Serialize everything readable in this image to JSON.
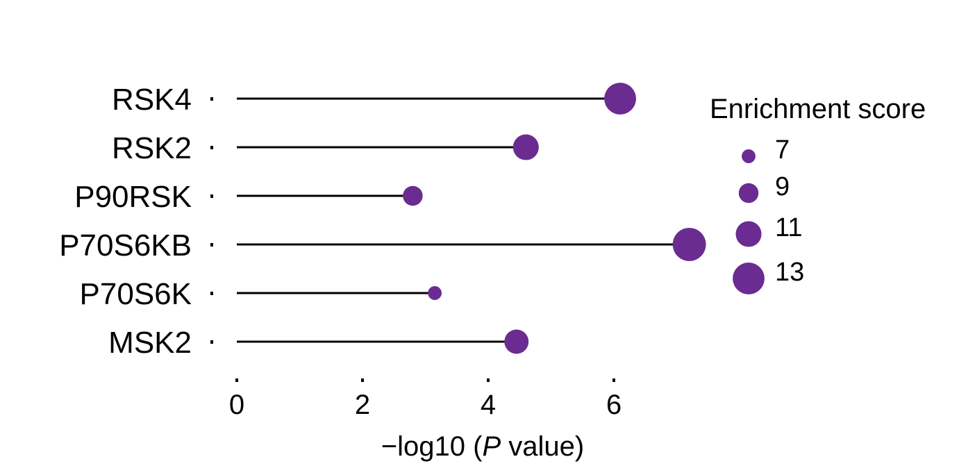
{
  "chart_data": {
    "type": "lollipop",
    "categories": [
      "RSK4",
      "RSK2",
      "P90RSK",
      "P70S6KB",
      "P70S6K",
      "MSK2"
    ],
    "x": [
      6.1,
      4.6,
      2.8,
      7.2,
      3.15,
      4.45
    ],
    "enrichment_score": [
      13,
      11,
      9,
      13.5,
      7,
      10.5
    ],
    "xlabel_prefix": "−log10 (",
    "xlabel_italic": "P",
    "xlabel_suffix": " value)",
    "ylabel": "",
    "xlim": [
      0,
      7.5
    ],
    "xticks": [
      0,
      2,
      4,
      6
    ],
    "marker_color": "#6a2c91",
    "stem_color": "#000000",
    "grid": false,
    "legend": {
      "title": "Enrichment score",
      "placement": "right",
      "entries": [
        {
          "label": "7",
          "value": 7
        },
        {
          "label": "9",
          "value": 9
        },
        {
          "label": "11",
          "value": 11
        },
        {
          "label": "13",
          "value": 13
        }
      ]
    }
  }
}
